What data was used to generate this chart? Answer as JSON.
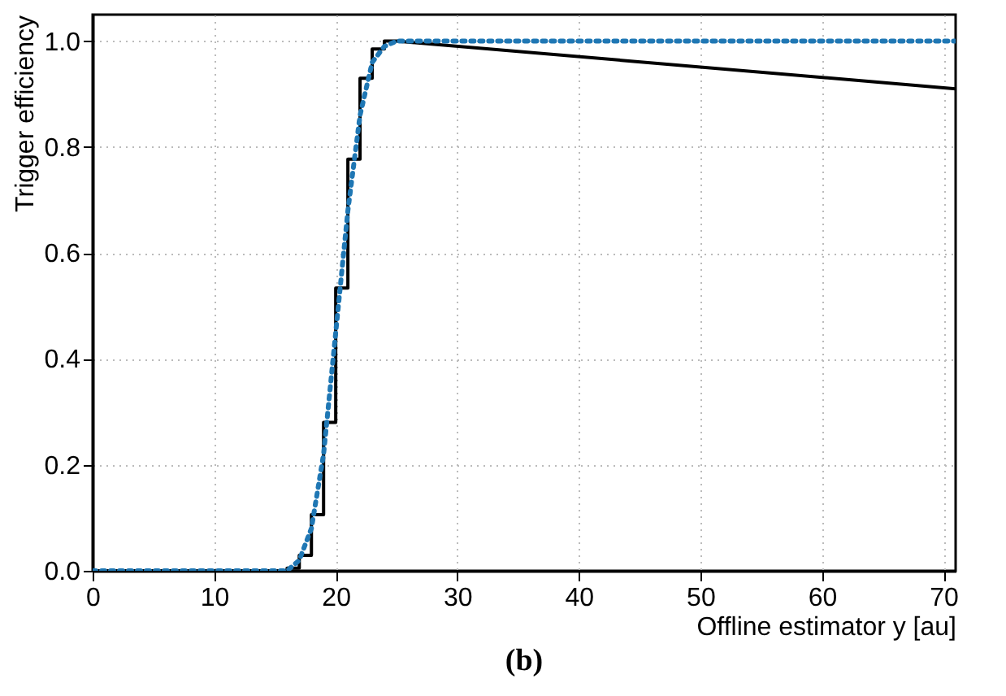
{
  "chart_data": {
    "type": "line",
    "xlabel": "Offline estimator y [au]",
    "ylabel": "Trigger efficiency",
    "annotations": [
      "(b)"
    ],
    "series": [
      {
        "color": "#000000",
        "x": [
          0,
          16,
          16,
          17,
          17,
          18,
          18,
          19,
          19,
          20,
          20,
          21,
          21,
          22,
          22,
          23,
          23,
          24,
          24,
          25,
          71
        ],
        "values": [
          0,
          0,
          0.005,
          0.005,
          0.029,
          0.029,
          0.106,
          0.106,
          0.28,
          0.28,
          0.534,
          0.534,
          0.777,
          0.777,
          0.93,
          0.93,
          0.985,
          0.985,
          1.0,
          1.0,
          0.91
        ]
      },
      {
        "color": "#1f77b4",
        "line_style": "dotted",
        "x": [
          0,
          16,
          17,
          18,
          19,
          20,
          21,
          22,
          23,
          24,
          25,
          71
        ],
        "values": [
          0,
          0,
          0.02,
          0.08,
          0.22,
          0.45,
          0.68,
          0.86,
          0.96,
          0.99,
          1.0,
          1.0
        ]
      }
    ],
    "xlim": [
      0,
      71
    ],
    "ylim": [
      0,
      1.05
    ],
    "xticks": [
      0,
      10,
      20,
      30,
      40,
      50,
      60,
      70
    ],
    "yticks": [
      {
        "value": 0,
        "label": "0.0"
      },
      {
        "value": 0.2,
        "label": "0.2"
      },
      {
        "value": 0.4,
        "label": "0.4"
      },
      {
        "value": 0.6,
        "label": "0.6"
      },
      {
        "value": 0.8,
        "label": "0.8"
      },
      {
        "value": 1,
        "label": "1.0"
      }
    ],
    "grid": true,
    "marker": "none"
  }
}
